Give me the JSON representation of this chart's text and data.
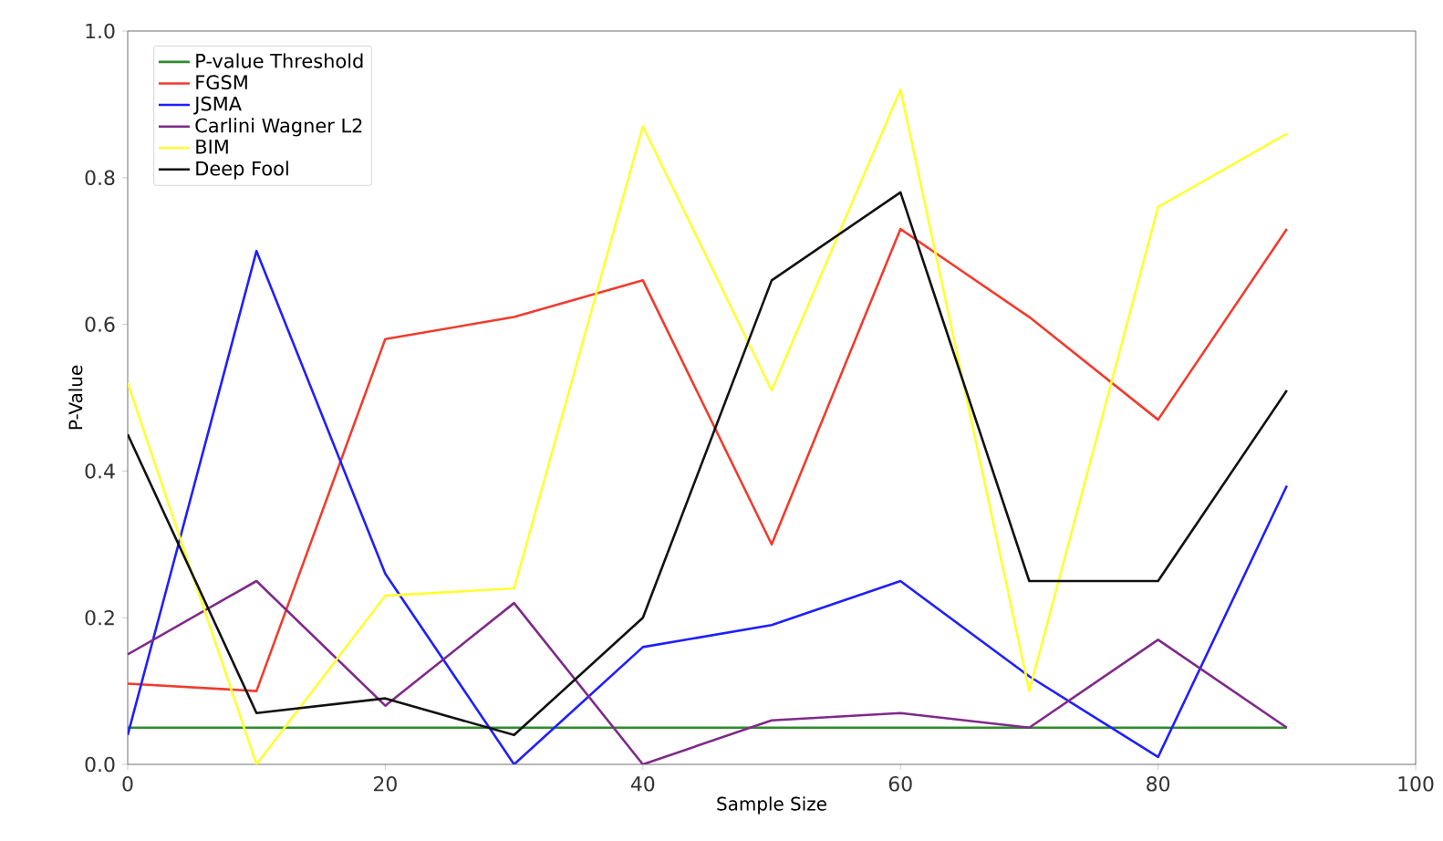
{
  "chart_data": {
    "type": "line",
    "xlabel": "Sample Size",
    "ylabel": "P-Value",
    "x": [
      0,
      10,
      20,
      30,
      40,
      50,
      60,
      70,
      80,
      90
    ],
    "series": [
      {
        "name": "P-value Threshold",
        "color": "#2e8b2e",
        "x": [
          0,
          90
        ],
        "values": [
          0.05,
          0.05
        ]
      },
      {
        "name": "FGSM",
        "color": "#f03c2e",
        "values": [
          0.11,
          0.1,
          0.58,
          0.61,
          0.66,
          0.3,
          0.73,
          0.61,
          0.47,
          0.73
        ]
      },
      {
        "name": "JSMA",
        "color": "#1f1fff",
        "values": [
          0.04,
          0.7,
          0.26,
          0.0,
          0.16,
          0.19,
          0.25,
          0.12,
          0.01,
          0.38
        ]
      },
      {
        "name": "Carlini Wagner L2",
        "color": "#7f2a8a",
        "values": [
          0.15,
          0.25,
          0.08,
          0.22,
          0.0,
          0.06,
          0.07,
          0.05,
          0.17,
          0.05
        ]
      },
      {
        "name": "BIM",
        "color": "#ffff33",
        "values": [
          0.52,
          0.0,
          0.23,
          0.24,
          0.87,
          0.51,
          0.92,
          0.1,
          0.76,
          0.86
        ]
      },
      {
        "name": "Deep Fool",
        "color": "#111111",
        "values": [
          0.45,
          0.07,
          0.09,
          0.04,
          0.2,
          0.66,
          0.78,
          0.25,
          0.25,
          0.51
        ]
      }
    ],
    "xlim": [
      0,
      100
    ],
    "ylim": [
      0,
      1.0
    ],
    "xticks": [
      0,
      20,
      40,
      60,
      80,
      100
    ],
    "yticks": [
      {
        "value": 0,
        "label": "0.0"
      },
      {
        "value": 0.2,
        "label": "0.2"
      },
      {
        "value": 0.4,
        "label": "0.4"
      },
      {
        "value": 0.6,
        "label": "0.6"
      },
      {
        "value": 0.8,
        "label": "0.8"
      },
      {
        "value": 1.0,
        "label": "1.0"
      }
    ],
    "legend": "top left",
    "grid": false,
    "line_style": "solid",
    "marker": "none"
  }
}
